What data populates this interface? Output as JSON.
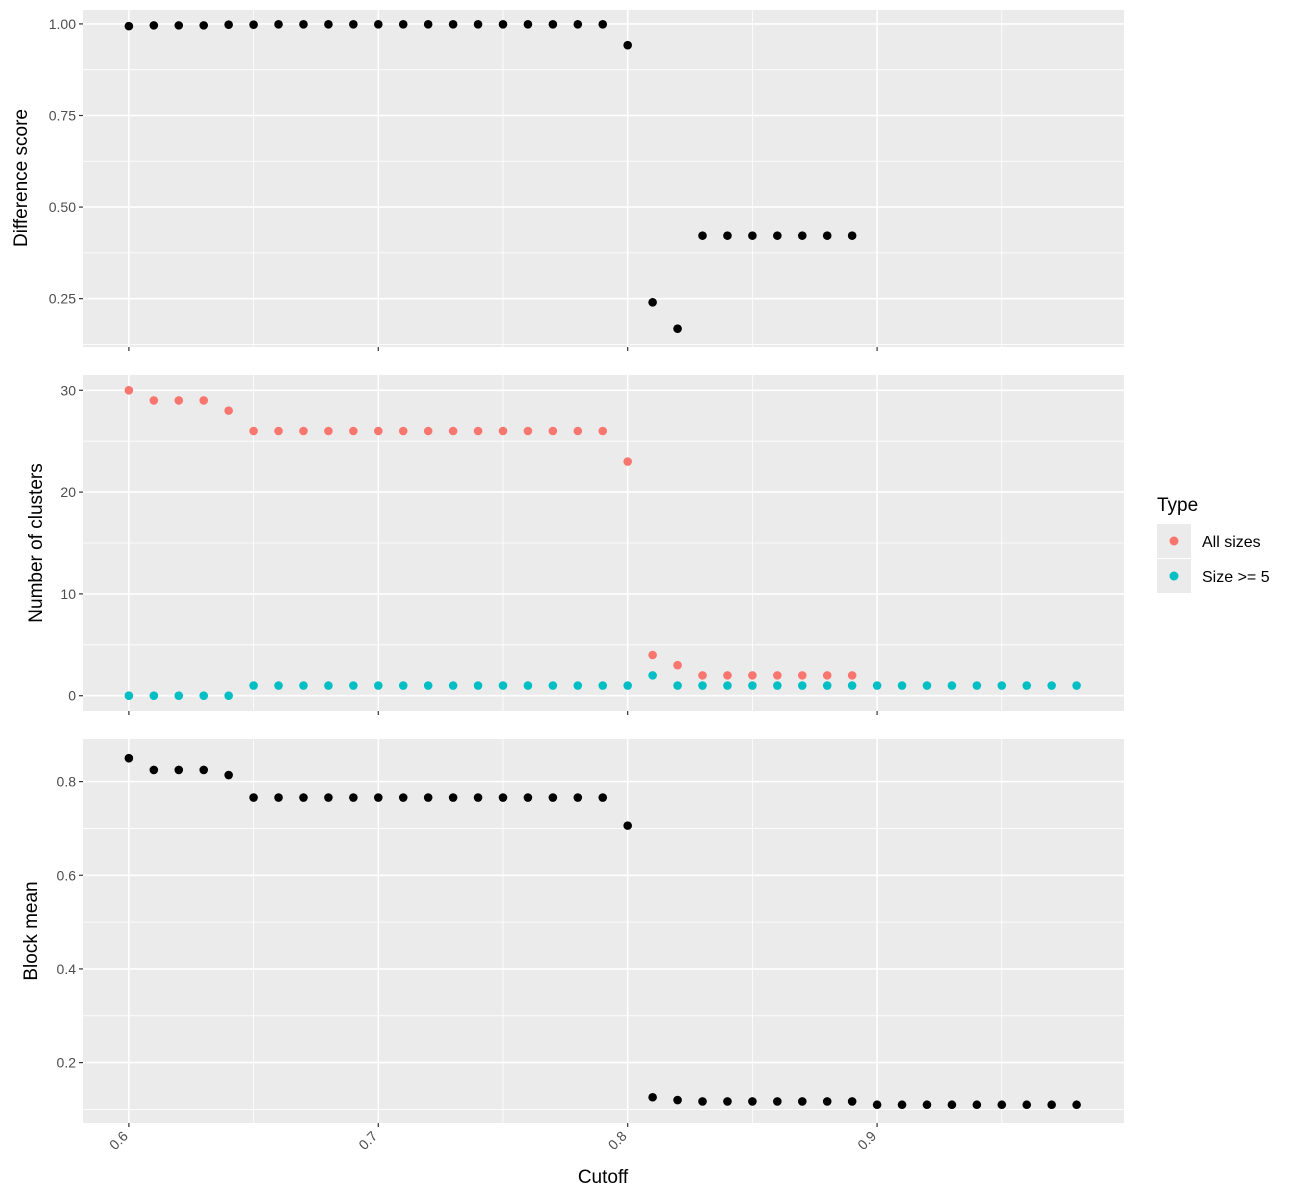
{
  "chart_data": [
    {
      "type": "scatter",
      "panel": "top",
      "ylabel": "Difference score",
      "xlim": [
        0.5816,
        0.999
      ],
      "ylim": [
        0.118,
        1.038
      ],
      "yticks": [
        0.25,
        0.5,
        0.75,
        1.0
      ],
      "ytick_labels": [
        "0.25",
        "0.50",
        "0.75",
        "1.00"
      ],
      "grid": true,
      "series": [
        {
          "name": "Difference score",
          "color": "#000000",
          "x": [
            0.6,
            0.61,
            0.62,
            0.63,
            0.64,
            0.65,
            0.66,
            0.67,
            0.68,
            0.69,
            0.7,
            0.71,
            0.72,
            0.73,
            0.74,
            0.75,
            0.76,
            0.77,
            0.78,
            0.79,
            0.8,
            0.81,
            0.82,
            0.83,
            0.84,
            0.85,
            0.86,
            0.87,
            0.88,
            0.89
          ],
          "y": [
            0.994,
            0.996,
            0.996,
            0.996,
            0.998,
            0.998,
            0.999,
            0.999,
            0.999,
            0.999,
            0.999,
            0.999,
            0.999,
            0.999,
            0.999,
            0.999,
            0.999,
            0.999,
            0.999,
            0.999,
            0.942,
            0.24,
            0.168,
            0.422,
            0.422,
            0.422,
            0.422,
            0.422,
            0.422,
            0.422
          ]
        }
      ]
    },
    {
      "type": "scatter",
      "panel": "middle",
      "ylabel": "Number of clusters",
      "xlim": [
        0.5816,
        0.999
      ],
      "ylim": [
        -1.5,
        31.5
      ],
      "yticks": [
        0,
        10,
        20,
        30
      ],
      "ytick_labels": [
        "0",
        "10",
        "20",
        "30"
      ],
      "grid": true,
      "legend": {
        "title": "Type",
        "position": "right",
        "entries": [
          "All sizes",
          "Size >= 5"
        ]
      },
      "series": [
        {
          "name": "All sizes",
          "color": "#F8766D",
          "x": [
            0.6,
            0.61,
            0.62,
            0.63,
            0.64,
            0.65,
            0.66,
            0.67,
            0.68,
            0.69,
            0.7,
            0.71,
            0.72,
            0.73,
            0.74,
            0.75,
            0.76,
            0.77,
            0.78,
            0.79,
            0.8,
            0.81,
            0.82,
            0.83,
            0.84,
            0.85,
            0.86,
            0.87,
            0.88,
            0.89
          ],
          "y": [
            30,
            29,
            29,
            29,
            28,
            26,
            26,
            26,
            26,
            26,
            26,
            26,
            26,
            26,
            26,
            26,
            26,
            26,
            26,
            26,
            23,
            4,
            3,
            2,
            2,
            2,
            2,
            2,
            2,
            2
          ]
        },
        {
          "name": "Size >= 5",
          "color": "#00BFC4",
          "x": [
            0.6,
            0.61,
            0.62,
            0.63,
            0.64,
            0.65,
            0.66,
            0.67,
            0.68,
            0.69,
            0.7,
            0.71,
            0.72,
            0.73,
            0.74,
            0.75,
            0.76,
            0.77,
            0.78,
            0.79,
            0.8,
            0.81,
            0.82,
            0.83,
            0.84,
            0.85,
            0.86,
            0.87,
            0.88,
            0.89,
            0.9,
            0.91,
            0.92,
            0.93,
            0.94,
            0.95,
            0.96,
            0.97,
            0.98
          ],
          "y": [
            0,
            0,
            0,
            0,
            0,
            1,
            1,
            1,
            1,
            1,
            1,
            1,
            1,
            1,
            1,
            1,
            1,
            1,
            1,
            1,
            1,
            2,
            1,
            1,
            1,
            1,
            1,
            1,
            1,
            1,
            1,
            1,
            1,
            1,
            1,
            1,
            1,
            1,
            1
          ]
        }
      ]
    },
    {
      "type": "scatter",
      "panel": "bottom",
      "ylabel": "Block mean",
      "xlabel": "Cutoff",
      "xlim": [
        0.5816,
        0.999
      ],
      "ylim": [
        0.071,
        0.891
      ],
      "yticks": [
        0.2,
        0.4,
        0.6,
        0.8
      ],
      "ytick_labels": [
        "0.2",
        "0.4",
        "0.6",
        "0.8"
      ],
      "xticks": [
        0.6,
        0.7,
        0.8,
        0.9
      ],
      "xtick_labels": [
        "0.6",
        "0.7",
        "0.8",
        "0.9"
      ],
      "grid": true,
      "series": [
        {
          "name": "Block mean",
          "color": "#000000",
          "x": [
            0.6,
            0.61,
            0.62,
            0.63,
            0.64,
            0.65,
            0.66,
            0.67,
            0.68,
            0.69,
            0.7,
            0.71,
            0.72,
            0.73,
            0.74,
            0.75,
            0.76,
            0.77,
            0.78,
            0.79,
            0.8,
            0.81,
            0.82,
            0.83,
            0.84,
            0.85,
            0.86,
            0.87,
            0.88,
            0.89,
            0.9,
            0.91,
            0.92,
            0.93,
            0.94,
            0.95,
            0.96,
            0.97,
            0.98
          ],
          "y": [
            0.85,
            0.825,
            0.825,
            0.825,
            0.814,
            0.766,
            0.766,
            0.766,
            0.766,
            0.766,
            0.766,
            0.766,
            0.766,
            0.766,
            0.766,
            0.766,
            0.766,
            0.766,
            0.766,
            0.766,
            0.706,
            0.126,
            0.12,
            0.117,
            0.117,
            0.117,
            0.117,
            0.117,
            0.117,
            0.117,
            0.11,
            0.11,
            0.11,
            0.11,
            0.11,
            0.11,
            0.11,
            0.11,
            0.11
          ]
        }
      ]
    }
  ]
}
